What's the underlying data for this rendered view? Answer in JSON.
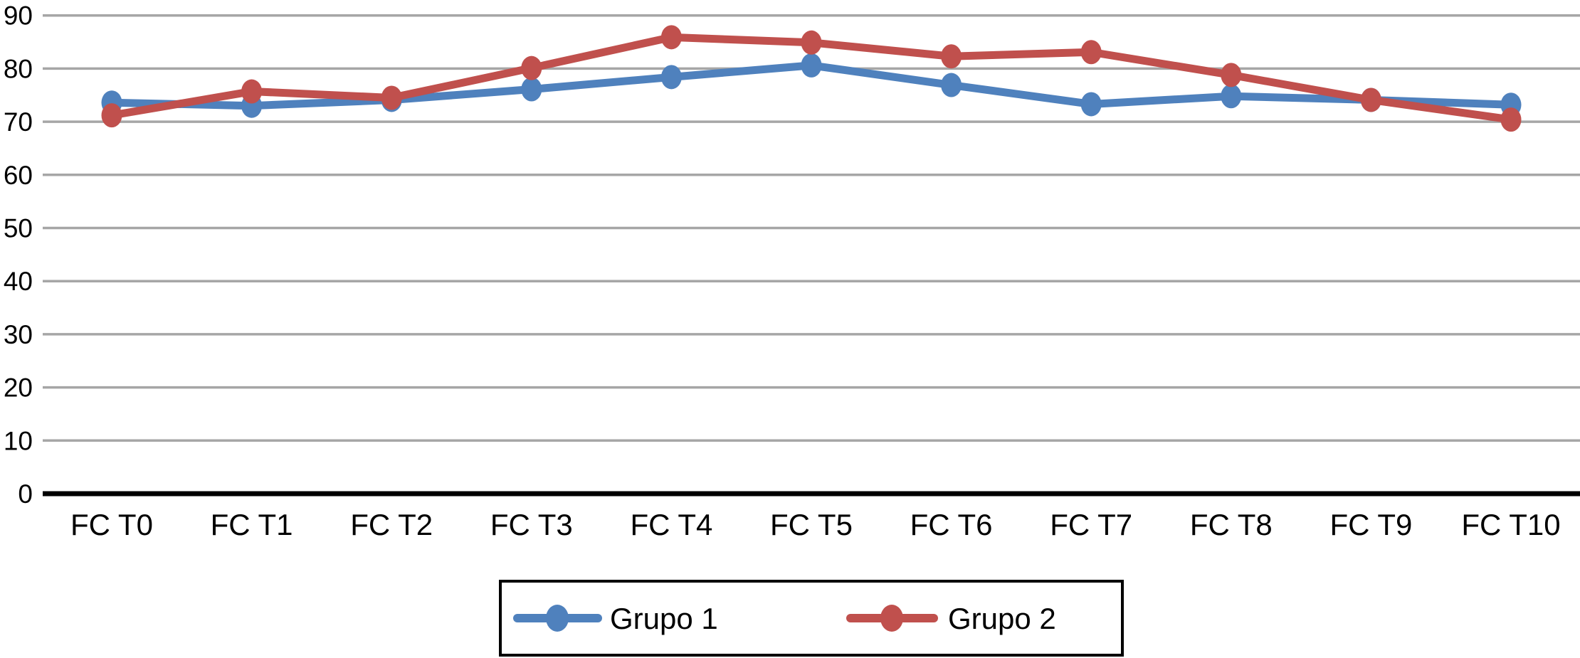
{
  "chart_data": {
    "type": "line",
    "categories": [
      "FC T0",
      "FC T1",
      "FC T2",
      "FC T3",
      "FC T4",
      "FC T5",
      "FC T6",
      "FC T7",
      "FC T8",
      "FC T9",
      "FC T10"
    ],
    "series": [
      {
        "name": "Grupo 1",
        "color": "#4F81BD",
        "values": [
          73.6,
          73.0,
          74.1,
          76.1,
          78.4,
          80.6,
          76.9,
          73.3,
          74.8,
          74.1,
          73.2
        ]
      },
      {
        "name": "Grupo 2",
        "color": "#C0504D",
        "values": [
          71.2,
          75.7,
          74.5,
          80.1,
          85.9,
          84.9,
          82.3,
          83.1,
          78.8,
          74.1,
          70.4
        ]
      }
    ],
    "ylim": [
      0,
      90
    ],
    "yticks": [
      0,
      10,
      20,
      30,
      40,
      50,
      60,
      70,
      80,
      90
    ],
    "ytick_labels": [
      "0",
      "10",
      "20",
      "30",
      "40",
      "50",
      "60",
      "70",
      "80",
      "90"
    ],
    "grid": true,
    "legend_position": "bottom",
    "marker": "circle"
  },
  "style": {
    "background": "#FFFFFF",
    "gridline_color": "#A6A6A6",
    "axis_color": "#000000",
    "label_color": "#000000",
    "legend_border_color": "#000000",
    "legend_background": "#FFFFFF"
  }
}
